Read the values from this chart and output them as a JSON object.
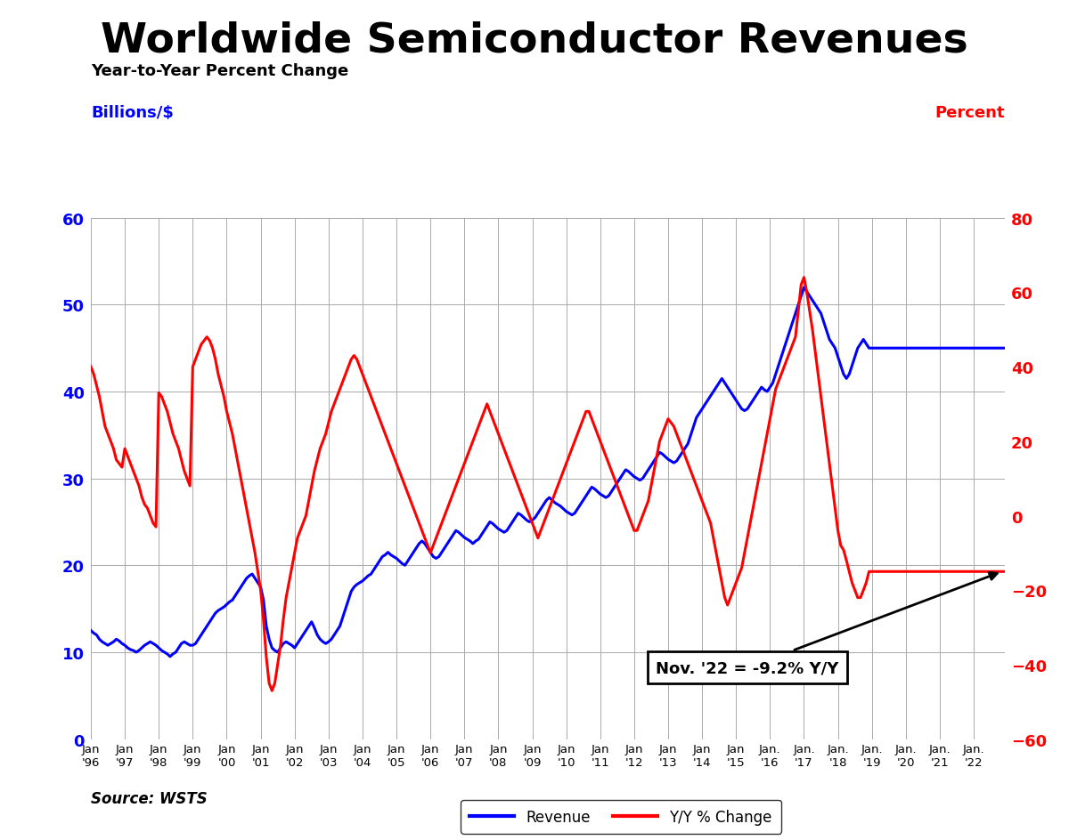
{
  "title": "Worldwide Semiconductor Revenues",
  "subtitle": "Year-to-Year Percent Change",
  "ylabel_left": "Billions/$",
  "ylabel_right": "Percent",
  "source": "Source: WSTS",
  "annotation_text": "Nov. '22 = -9.2% Y/Y",
  "left_ylim": [
    0,
    60
  ],
  "right_ylim": [
    -60,
    80
  ],
  "left_yticks": [
    0,
    10,
    20,
    30,
    40,
    50,
    60
  ],
  "right_yticks": [
    -60,
    -40,
    -20,
    0,
    20,
    40,
    60,
    80
  ],
  "revenue_color": "#0000FF",
  "yoy_color": "#FF0000",
  "background_color": "#FFFFFF",
  "grid_color": "#AAAAAA",
  "revenue_monthly": [
    12.5,
    12.2,
    12.0,
    11.5,
    11.2,
    11.0,
    10.8,
    11.0,
    11.2,
    11.5,
    11.3,
    11.0,
    10.8,
    10.5,
    10.3,
    10.2,
    10.0,
    10.2,
    10.5,
    10.8,
    11.0,
    11.2,
    11.0,
    10.8,
    10.5,
    10.2,
    10.0,
    9.8,
    9.5,
    9.8,
    10.0,
    10.5,
    11.0,
    11.2,
    11.0,
    10.8,
    10.8,
    11.0,
    11.5,
    12.0,
    12.5,
    13.0,
    13.5,
    14.0,
    14.5,
    14.8,
    15.0,
    15.2,
    15.5,
    15.8,
    16.0,
    16.5,
    17.0,
    17.5,
    18.0,
    18.5,
    18.8,
    19.0,
    18.5,
    18.0,
    17.5,
    16.0,
    13.0,
    11.5,
    10.5,
    10.2,
    10.0,
    10.5,
    11.0,
    11.2,
    11.0,
    10.8,
    10.5,
    11.0,
    11.5,
    12.0,
    12.5,
    13.0,
    13.5,
    12.8,
    12.0,
    11.5,
    11.2,
    11.0,
    11.2,
    11.5,
    12.0,
    12.5,
    13.0,
    14.0,
    15.0,
    16.0,
    17.0,
    17.5,
    17.8,
    18.0,
    18.2,
    18.5,
    18.8,
    19.0,
    19.5,
    20.0,
    20.5,
    21.0,
    21.2,
    21.5,
    21.2,
    21.0,
    20.8,
    20.5,
    20.2,
    20.0,
    20.5,
    21.0,
    21.5,
    22.0,
    22.5,
    22.8,
    22.5,
    22.0,
    21.5,
    21.0,
    20.8,
    21.0,
    21.5,
    22.0,
    22.5,
    23.0,
    23.5,
    24.0,
    23.8,
    23.5,
    23.2,
    23.0,
    22.8,
    22.5,
    22.8,
    23.0,
    23.5,
    24.0,
    24.5,
    25.0,
    24.8,
    24.5,
    24.2,
    24.0,
    23.8,
    24.0,
    24.5,
    25.0,
    25.5,
    26.0,
    25.8,
    25.5,
    25.2,
    25.0,
    25.2,
    25.5,
    26.0,
    26.5,
    27.0,
    27.5,
    27.8,
    27.5,
    27.2,
    27.0,
    26.8,
    26.5,
    26.2,
    26.0,
    25.8,
    26.0,
    26.5,
    27.0,
    27.5,
    28.0,
    28.5,
    29.0,
    28.8,
    28.5,
    28.2,
    28.0,
    27.8,
    28.0,
    28.5,
    29.0,
    29.5,
    30.0,
    30.5,
    31.0,
    30.8,
    30.5,
    30.2,
    30.0,
    29.8,
    30.0,
    30.5,
    31.0,
    31.5,
    32.0,
    32.5,
    33.0,
    32.8,
    32.5,
    32.2,
    32.0,
    31.8,
    32.0,
    32.5,
    33.0,
    33.5,
    34.0,
    35.0,
    36.0,
    37.0,
    37.5,
    38.0,
    38.5,
    39.0,
    39.5,
    40.0,
    40.5,
    41.0,
    41.5,
    41.0,
    40.5,
    40.0,
    39.5,
    39.0,
    38.5,
    38.0,
    37.8,
    38.0,
    38.5,
    39.0,
    39.5,
    40.0,
    40.5,
    40.2,
    40.0,
    40.5,
    41.0,
    42.0,
    43.0,
    44.0,
    45.0,
    46.0,
    47.0,
    48.0,
    49.0,
    50.0,
    51.0,
    52.0,
    51.5,
    51.0,
    50.5,
    50.0,
    49.5,
    49.0,
    48.0,
    47.0,
    46.0,
    45.5,
    45.0,
    44.0,
    43.0,
    42.0,
    41.5,
    42.0,
    43.0,
    44.0,
    45.0,
    45.5,
    46.0,
    45.5,
    45.0
  ],
  "yoy_monthly": [
    40.0,
    38.0,
    35.0,
    32.0,
    28.0,
    24.0,
    22.0,
    20.0,
    18.0,
    15.0,
    14.0,
    13.0,
    18.0,
    16.0,
    14.0,
    12.0,
    10.0,
    8.0,
    5.0,
    3.0,
    2.0,
    0.0,
    -2.0,
    -3.0,
    33.0,
    32.0,
    30.0,
    28.0,
    25.0,
    22.0,
    20.0,
    18.0,
    15.0,
    12.0,
    10.0,
    8.0,
    40.0,
    42.0,
    44.0,
    46.0,
    47.0,
    48.0,
    47.0,
    45.0,
    42.0,
    38.0,
    35.0,
    32.0,
    28.0,
    25.0,
    22.0,
    18.0,
    14.0,
    10.0,
    6.0,
    2.0,
    -2.0,
    -6.0,
    -10.0,
    -15.0,
    -20.0,
    -28.0,
    -38.0,
    -45.0,
    -47.0,
    -45.0,
    -40.0,
    -35.0,
    -28.0,
    -22.0,
    -18.0,
    -14.0,
    -10.0,
    -6.0,
    -4.0,
    -2.0,
    0.0,
    4.0,
    8.0,
    12.0,
    15.0,
    18.0,
    20.0,
    22.0,
    25.0,
    28.0,
    30.0,
    32.0,
    34.0,
    36.0,
    38.0,
    40.0,
    42.0,
    43.0,
    42.0,
    40.0,
    38.0,
    36.0,
    34.0,
    32.0,
    30.0,
    28.0,
    26.0,
    24.0,
    22.0,
    20.0,
    18.0,
    16.0,
    14.0,
    12.0,
    10.0,
    8.0,
    6.0,
    4.0,
    2.0,
    0.0,
    -2.0,
    -4.0,
    -6.0,
    -8.0,
    -10.0,
    -8.0,
    -6.0,
    -4.0,
    -2.0,
    0.0,
    2.0,
    4.0,
    6.0,
    8.0,
    10.0,
    12.0,
    14.0,
    16.0,
    18.0,
    20.0,
    22.0,
    24.0,
    26.0,
    28.0,
    30.0,
    28.0,
    26.0,
    24.0,
    22.0,
    20.0,
    18.0,
    16.0,
    14.0,
    12.0,
    10.0,
    8.0,
    6.0,
    4.0,
    2.0,
    0.0,
    -2.0,
    -4.0,
    -6.0,
    -4.0,
    -2.0,
    0.0,
    2.0,
    4.0,
    6.0,
    8.0,
    10.0,
    12.0,
    14.0,
    16.0,
    18.0,
    20.0,
    22.0,
    24.0,
    26.0,
    28.0,
    28.0,
    26.0,
    24.0,
    22.0,
    20.0,
    18.0,
    16.0,
    14.0,
    12.0,
    10.0,
    8.0,
    6.0,
    4.0,
    2.0,
    0.0,
    -2.0,
    -4.0,
    -4.0,
    -2.0,
    0.0,
    2.0,
    4.0,
    8.0,
    12.0,
    16.0,
    20.0,
    22.0,
    24.0,
    26.0,
    25.0,
    24.0,
    22.0,
    20.0,
    18.0,
    16.0,
    14.0,
    12.0,
    10.0,
    8.0,
    6.0,
    4.0,
    2.0,
    0.0,
    -2.0,
    -6.0,
    -10.0,
    -14.0,
    -18.0,
    -22.0,
    -24.0,
    -22.0,
    -20.0,
    -18.0,
    -16.0,
    -14.0,
    -10.0,
    -6.0,
    -2.0,
    2.0,
    6.0,
    10.0,
    14.0,
    18.0,
    22.0,
    26.0,
    30.0,
    34.0,
    36.0,
    38.0,
    40.0,
    42.0,
    44.0,
    46.0,
    48.0,
    55.0,
    62.0,
    64.0,
    60.0,
    55.0,
    50.0,
    44.0,
    38.0,
    32.0,
    26.0,
    20.0,
    14.0,
    8.0,
    2.0,
    -4.0,
    -8.0,
    -9.2,
    -12.0,
    -15.0,
    -18.0,
    -20.0,
    -22.0,
    -22.0,
    -20.0,
    -18.0,
    -15.0
  ]
}
